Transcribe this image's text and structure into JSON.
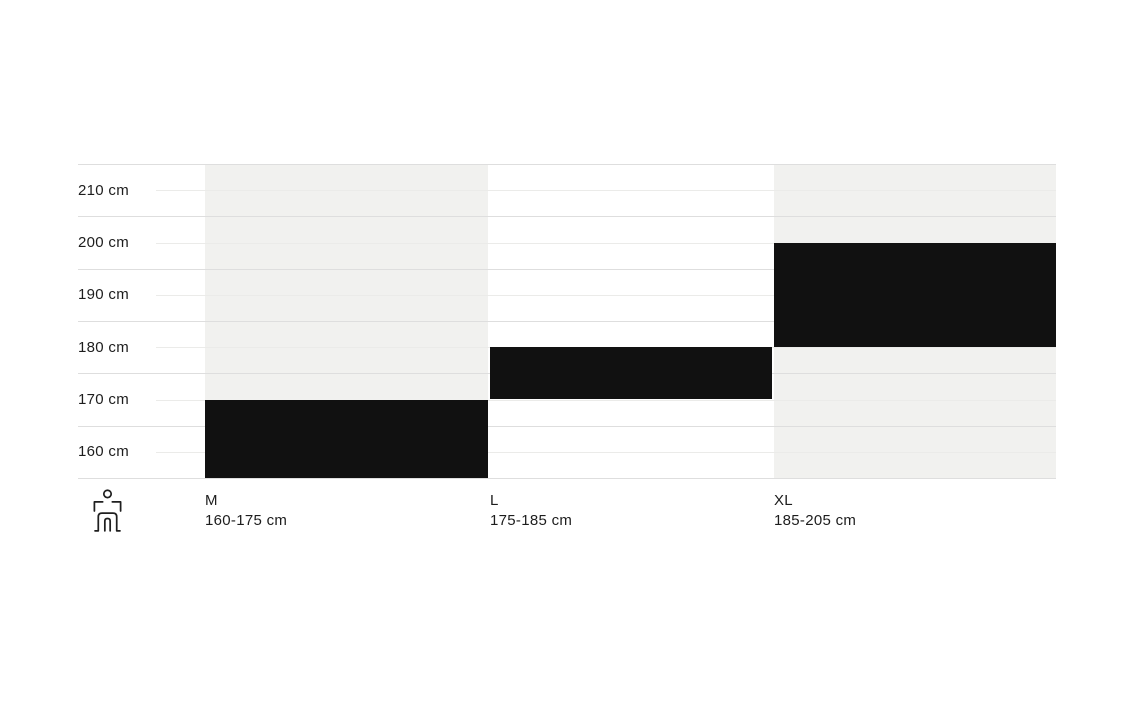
{
  "chart_data": {
    "type": "bar",
    "orientation": "vertical-range",
    "y_axis": {
      "unit": "cm",
      "min": 160,
      "max": 220,
      "gridline_step": 10,
      "tick_labels": [
        "210 cm",
        "200 cm",
        "190 cm",
        "180 cm",
        "170 cm",
        "160 cm"
      ],
      "tick_values": [
        210,
        200,
        190,
        180,
        170,
        160
      ],
      "grid": true
    },
    "categories": [
      {
        "size": "M",
        "range_label": "160-175 cm",
        "min_cm": 160,
        "max_cm": 175
      },
      {
        "size": "L",
        "range_label": "175-185 cm",
        "min_cm": 175,
        "max_cm": 185
      },
      {
        "size": "XL",
        "range_label": "185-205 cm",
        "min_cm": 185,
        "max_cm": 205
      }
    ],
    "colors": {
      "background": "#ffffff",
      "bar": "#111111",
      "column_alt_bg": "#f1f1ef",
      "gridline": "#dedede",
      "label_tick_line": "#ebebe9",
      "text": "#1d1d1d",
      "icon_stroke": "#1f1f1f"
    },
    "icons": {
      "legend": "person-height-icon"
    }
  }
}
